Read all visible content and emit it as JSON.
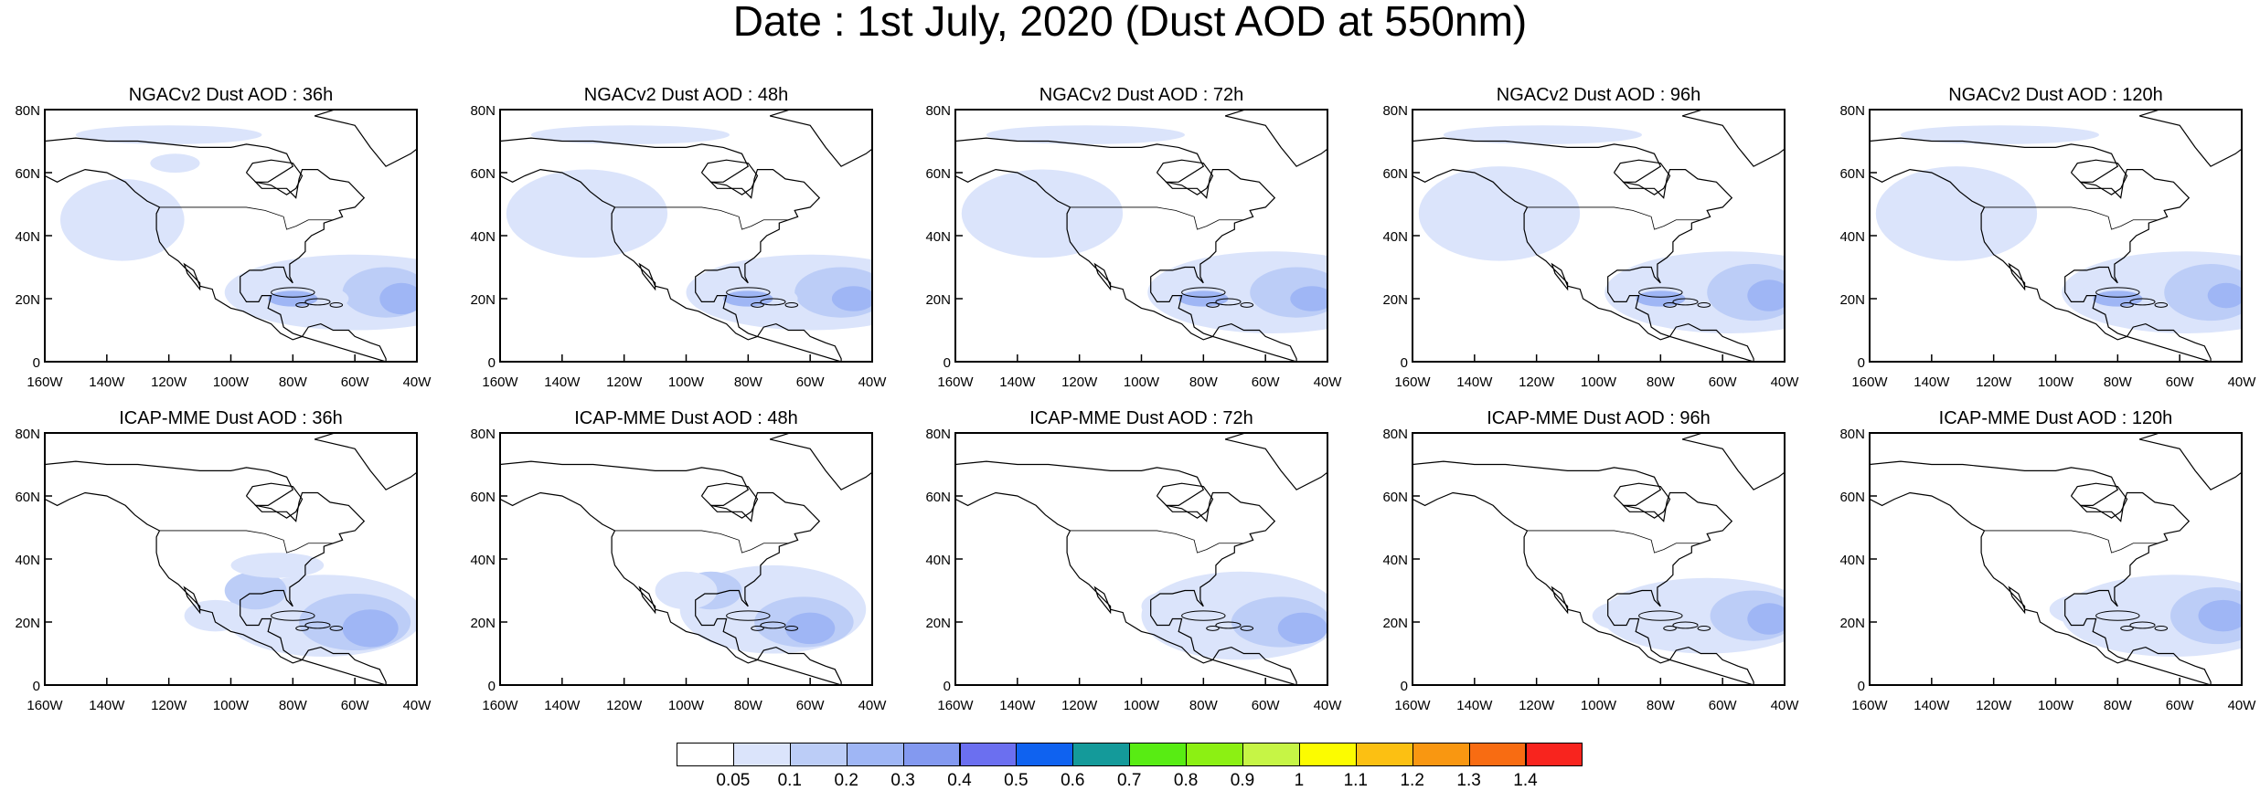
{
  "title": "Date : 1st July, 2020 (Dust AOD at 550nm)",
  "rows": [
    {
      "model": "NGACv2",
      "panels": [
        {
          "title": "NGACv2 Dust AOD : 36h",
          "lead": "36h"
        },
        {
          "title": "NGACv2 Dust AOD : 48h",
          "lead": "48h"
        },
        {
          "title": "NGACv2 Dust AOD : 72h",
          "lead": "72h"
        },
        {
          "title": "NGACv2 Dust AOD : 96h",
          "lead": "96h"
        },
        {
          "title": "NGACv2 Dust AOD : 120h",
          "lead": "120h"
        }
      ]
    },
    {
      "model": "ICAP-MME",
      "panels": [
        {
          "title": "ICAP-MME Dust AOD : 36h",
          "lead": "36h"
        },
        {
          "title": "ICAP-MME Dust AOD : 48h",
          "lead": "48h"
        },
        {
          "title": "ICAP-MME Dust AOD : 72h",
          "lead": "72h"
        },
        {
          "title": "ICAP-MME Dust AOD : 96h",
          "lead": "96h"
        },
        {
          "title": "ICAP-MME Dust AOD : 120h",
          "lead": "120h"
        }
      ]
    }
  ],
  "lat_labels": [
    "80N",
    "60N",
    "40N",
    "20N",
    "0"
  ],
  "lon_labels": [
    "160W",
    "140W",
    "120W",
    "100W",
    "80W",
    "60W",
    "40W"
  ],
  "lat_range": [
    0,
    80
  ],
  "lon_range": [
    -160,
    -40
  ],
  "colorbar": {
    "labels": [
      "0.05",
      "0.1",
      "0.2",
      "0.3",
      "0.4",
      "0.5",
      "0.6",
      "0.7",
      "0.8",
      "0.9",
      "1",
      "1.1",
      "1.2",
      "1.3",
      "1.4"
    ],
    "colors": [
      "#ffffff",
      "#dbe4fb",
      "#bccdf7",
      "#9fb6f5",
      "#8399f0",
      "#6b6ff0",
      "#0f62f0",
      "#149a9a",
      "#58ec13",
      "#8cf013",
      "#c6f545",
      "#fcfc00",
      "#fcc012",
      "#f99711",
      "#f86c12",
      "#f8241e"
    ]
  }
}
